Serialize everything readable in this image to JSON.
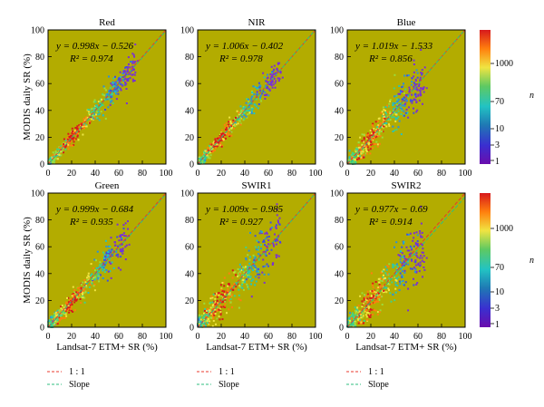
{
  "figure": {
    "ylabel": "MODIS daily SR (%)",
    "xlabel": "Landsat-7 ETM+ SR (%)",
    "colorbar_label": "n",
    "colorbar_ticks": [
      "1000",
      "70",
      "10",
      "3",
      "1"
    ],
    "colorbar_colors": [
      "#d7191c",
      "#ff7f0e",
      "#f0e442",
      "#5ec962",
      "#22c3c3",
      "#1f78b4",
      "#3a2fd0",
      "#6a0dad"
    ],
    "background_color": "#b3ac00",
    "legend": {
      "one_to_one": "1 : 1",
      "slope": "Slope",
      "one_to_one_color": "#e8382e",
      "slope_color": "#2fbf7f"
    }
  },
  "chart_data": [
    {
      "type": "scatter",
      "title": "Red",
      "eq": "y = 0.998x − 0.526",
      "r2": "R² = 0.974",
      "slope": 0.998,
      "intercept": -0.526,
      "xlim": [
        0,
        100
      ],
      "ylim": [
        0,
        100
      ],
      "xticks": [
        0,
        20,
        40,
        60,
        80,
        100
      ],
      "yticks": [
        0,
        20,
        40,
        60,
        80,
        100
      ],
      "spread": 4,
      "max_x": 75
    },
    {
      "type": "scatter",
      "title": "NIR",
      "eq": "y = 1.006x − 0.402",
      "r2": "R² = 0.978",
      "slope": 1.006,
      "intercept": -0.402,
      "xlim": [
        0,
        100
      ],
      "ylim": [
        0,
        100
      ],
      "xticks": [
        0,
        20,
        40,
        60,
        80,
        100
      ],
      "yticks": [
        0,
        20,
        40,
        60,
        80,
        100
      ],
      "spread": 4,
      "max_x": 70
    },
    {
      "type": "scatter",
      "title": "Blue",
      "eq": "y = 1.019x − 1.533",
      "r2": "R² = 0.856",
      "slope": 1.019,
      "intercept": -1.533,
      "xlim": [
        0,
        100
      ],
      "ylim": [
        0,
        100
      ],
      "xticks": [
        0,
        20,
        40,
        60,
        80,
        100
      ],
      "yticks": [
        0,
        20,
        40,
        60,
        80,
        100
      ],
      "spread": 7,
      "max_x": 65
    },
    {
      "type": "scatter",
      "title": "Green",
      "eq": "y = 0.999x − 0.684",
      "r2": "R² = 0.935",
      "slope": 0.999,
      "intercept": -0.684,
      "xlim": [
        0,
        100
      ],
      "ylim": [
        0,
        100
      ],
      "xticks": [
        0,
        20,
        40,
        60,
        80,
        100
      ],
      "yticks": [
        0,
        20,
        40,
        60,
        80,
        100
      ],
      "spread": 5,
      "max_x": 68
    },
    {
      "type": "scatter",
      "title": "SWIR1",
      "eq": "y = 1.009x − 0.985",
      "r2": "R² = 0.927",
      "slope": 1.009,
      "intercept": -0.985,
      "xlim": [
        0,
        100
      ],
      "ylim": [
        0,
        100
      ],
      "xticks": [
        0,
        20,
        40,
        60,
        80,
        100
      ],
      "yticks": [
        0,
        20,
        40,
        60,
        80,
        100
      ],
      "spread": 9,
      "max_x": 70
    },
    {
      "type": "scatter",
      "title": "SWIR2",
      "eq": "y = 0.977x − 0.69",
      "r2": "R² = 0.914",
      "slope": 0.977,
      "intercept": -0.69,
      "xlim": [
        0,
        100
      ],
      "ylim": [
        0,
        100
      ],
      "xticks": [
        0,
        20,
        40,
        60,
        80,
        100
      ],
      "yticks": [
        0,
        20,
        40,
        60,
        80,
        100
      ],
      "spread": 9,
      "max_x": 65
    }
  ]
}
